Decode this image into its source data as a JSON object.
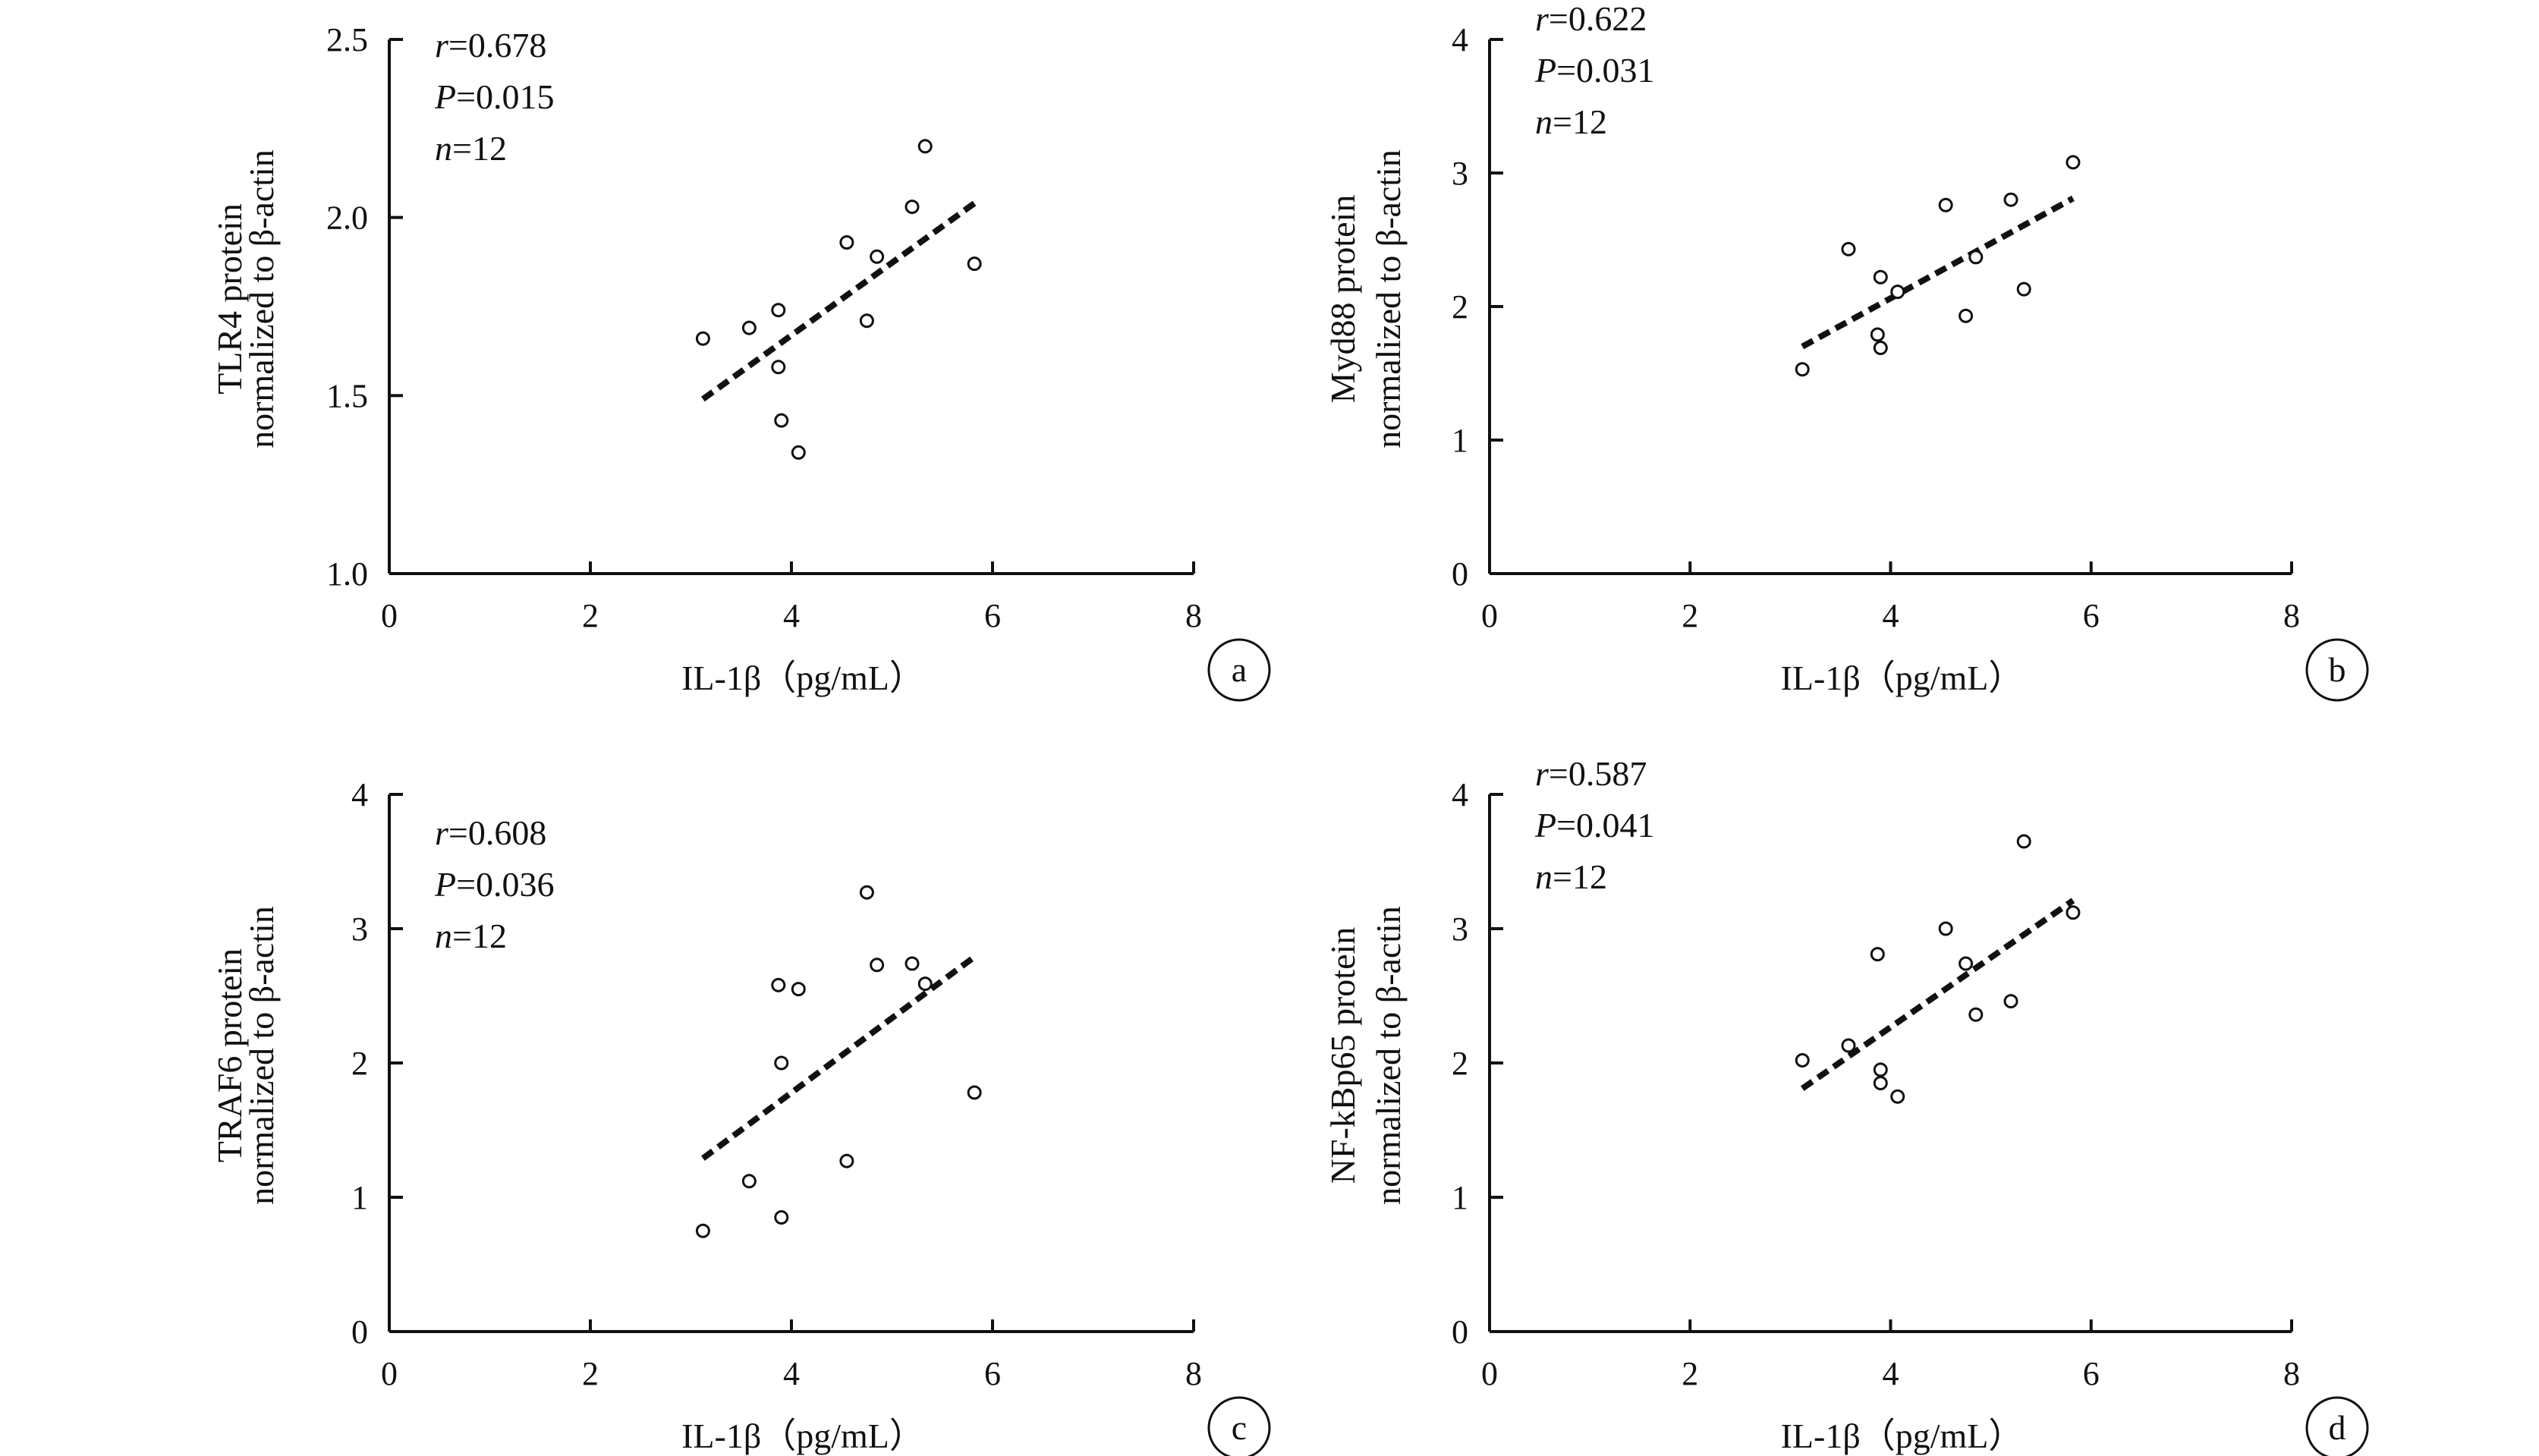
{
  "chart_data": [
    {
      "type": "scatter",
      "panel_label": "a",
      "xlabel": "IL-1β（pg/mL）",
      "ylabel_lines": [
        "TLR4 protein",
        "normalized to β-actin"
      ],
      "xlim": [
        0,
        8
      ],
      "ylim": [
        1.0,
        2.5
      ],
      "xticks": [
        "0",
        "2",
        "4",
        "6",
        "8"
      ],
      "yticks": [
        "1.0",
        "1.5",
        "2.0",
        "2.5"
      ],
      "stats": {
        "r_label": "r",
        "r_value": "=0.678",
        "p_label": "P",
        "p_value": "=0.015",
        "n_label": "n",
        "n_value": "=12"
      },
      "points": [
        [
          3.12,
          1.66
        ],
        [
          3.58,
          1.69
        ],
        [
          3.87,
          1.74
        ],
        [
          3.87,
          1.58
        ],
        [
          3.9,
          1.43
        ],
        [
          4.07,
          1.34
        ],
        [
          4.55,
          1.93
        ],
        [
          4.75,
          1.71
        ],
        [
          4.85,
          1.89
        ],
        [
          5.2,
          2.03
        ],
        [
          5.33,
          2.2
        ],
        [
          5.82,
          1.87
        ]
      ],
      "trend": [
        [
          3.12,
          1.49
        ],
        [
          5.82,
          2.04
        ]
      ]
    },
    {
      "type": "scatter",
      "panel_label": "b",
      "xlabel": "IL-1β（pg/mL）",
      "ylabel_lines": [
        "Myd88 protein",
        "normalized to β-actin"
      ],
      "xlim": [
        0,
        8
      ],
      "ylim": [
        0,
        4
      ],
      "xticks": [
        "0",
        "2",
        "4",
        "6",
        "8"
      ],
      "yticks": [
        "0",
        "1",
        "2",
        "3",
        "4"
      ],
      "stats": {
        "r_label": "r",
        "r_value": "=0.622",
        "p_label": "P",
        "p_value": "=0.031",
        "n_label": "n",
        "n_value": "=12"
      },
      "points": [
        [
          3.12,
          1.53
        ],
        [
          3.58,
          2.43
        ],
        [
          3.87,
          1.79
        ],
        [
          3.9,
          1.69
        ],
        [
          3.9,
          2.22
        ],
        [
          4.07,
          2.11
        ],
        [
          4.55,
          2.76
        ],
        [
          4.75,
          1.93
        ],
        [
          4.85,
          2.37
        ],
        [
          5.2,
          2.8
        ],
        [
          5.33,
          2.13
        ],
        [
          5.82,
          3.08
        ]
      ],
      "trend": [
        [
          3.12,
          1.7
        ],
        [
          5.82,
          2.81
        ]
      ]
    },
    {
      "type": "scatter",
      "panel_label": "c",
      "xlabel": "IL-1β（pg/mL）",
      "ylabel_lines": [
        "TRAF6 protein",
        "normalized to β-actin"
      ],
      "xlim": [
        0,
        8
      ],
      "ylim": [
        0,
        4
      ],
      "xticks": [
        "0",
        "2",
        "4",
        "6",
        "8"
      ],
      "yticks": [
        "0",
        "1",
        "2",
        "3",
        "4"
      ],
      "stats": {
        "r_label": "r",
        "r_value": "=0.608",
        "p_label": "P",
        "p_value": "=0.036",
        "n_label": "n",
        "n_value": "=12"
      },
      "points": [
        [
          3.12,
          0.75
        ],
        [
          3.58,
          1.12
        ],
        [
          3.87,
          2.58
        ],
        [
          3.9,
          2.0
        ],
        [
          3.9,
          0.85
        ],
        [
          4.07,
          2.55
        ],
        [
          4.55,
          1.27
        ],
        [
          4.75,
          3.27
        ],
        [
          4.85,
          2.73
        ],
        [
          5.2,
          2.74
        ],
        [
          5.33,
          2.59
        ],
        [
          5.82,
          1.78
        ]
      ],
      "trend": [
        [
          3.12,
          1.29
        ],
        [
          5.82,
          2.79
        ]
      ]
    },
    {
      "type": "scatter",
      "panel_label": "d",
      "xlabel": "IL-1β（pg/mL）",
      "ylabel_lines": [
        "NF-kBp65 protein",
        "normalized to β-actin"
      ],
      "xlim": [
        0,
        8
      ],
      "ylim": [
        0,
        4
      ],
      "xticks": [
        "0",
        "2",
        "4",
        "6",
        "8"
      ],
      "yticks": [
        "0",
        "1",
        "2",
        "3",
        "4"
      ],
      "stats": {
        "r_label": "r",
        "r_value": "=0.587",
        "p_label": "P",
        "p_value": "=0.041",
        "n_label": "n",
        "n_value": "=12"
      },
      "points": [
        [
          3.12,
          2.02
        ],
        [
          3.58,
          2.13
        ],
        [
          3.87,
          2.81
        ],
        [
          3.9,
          1.95
        ],
        [
          3.9,
          1.85
        ],
        [
          4.07,
          1.75
        ],
        [
          4.55,
          3.0
        ],
        [
          4.75,
          2.74
        ],
        [
          4.85,
          2.36
        ],
        [
          5.2,
          2.46
        ],
        [
          5.33,
          3.65
        ],
        [
          5.82,
          3.12
        ]
      ],
      "trend": [
        [
          3.12,
          1.81
        ],
        [
          5.82,
          3.21
        ]
      ]
    }
  ]
}
